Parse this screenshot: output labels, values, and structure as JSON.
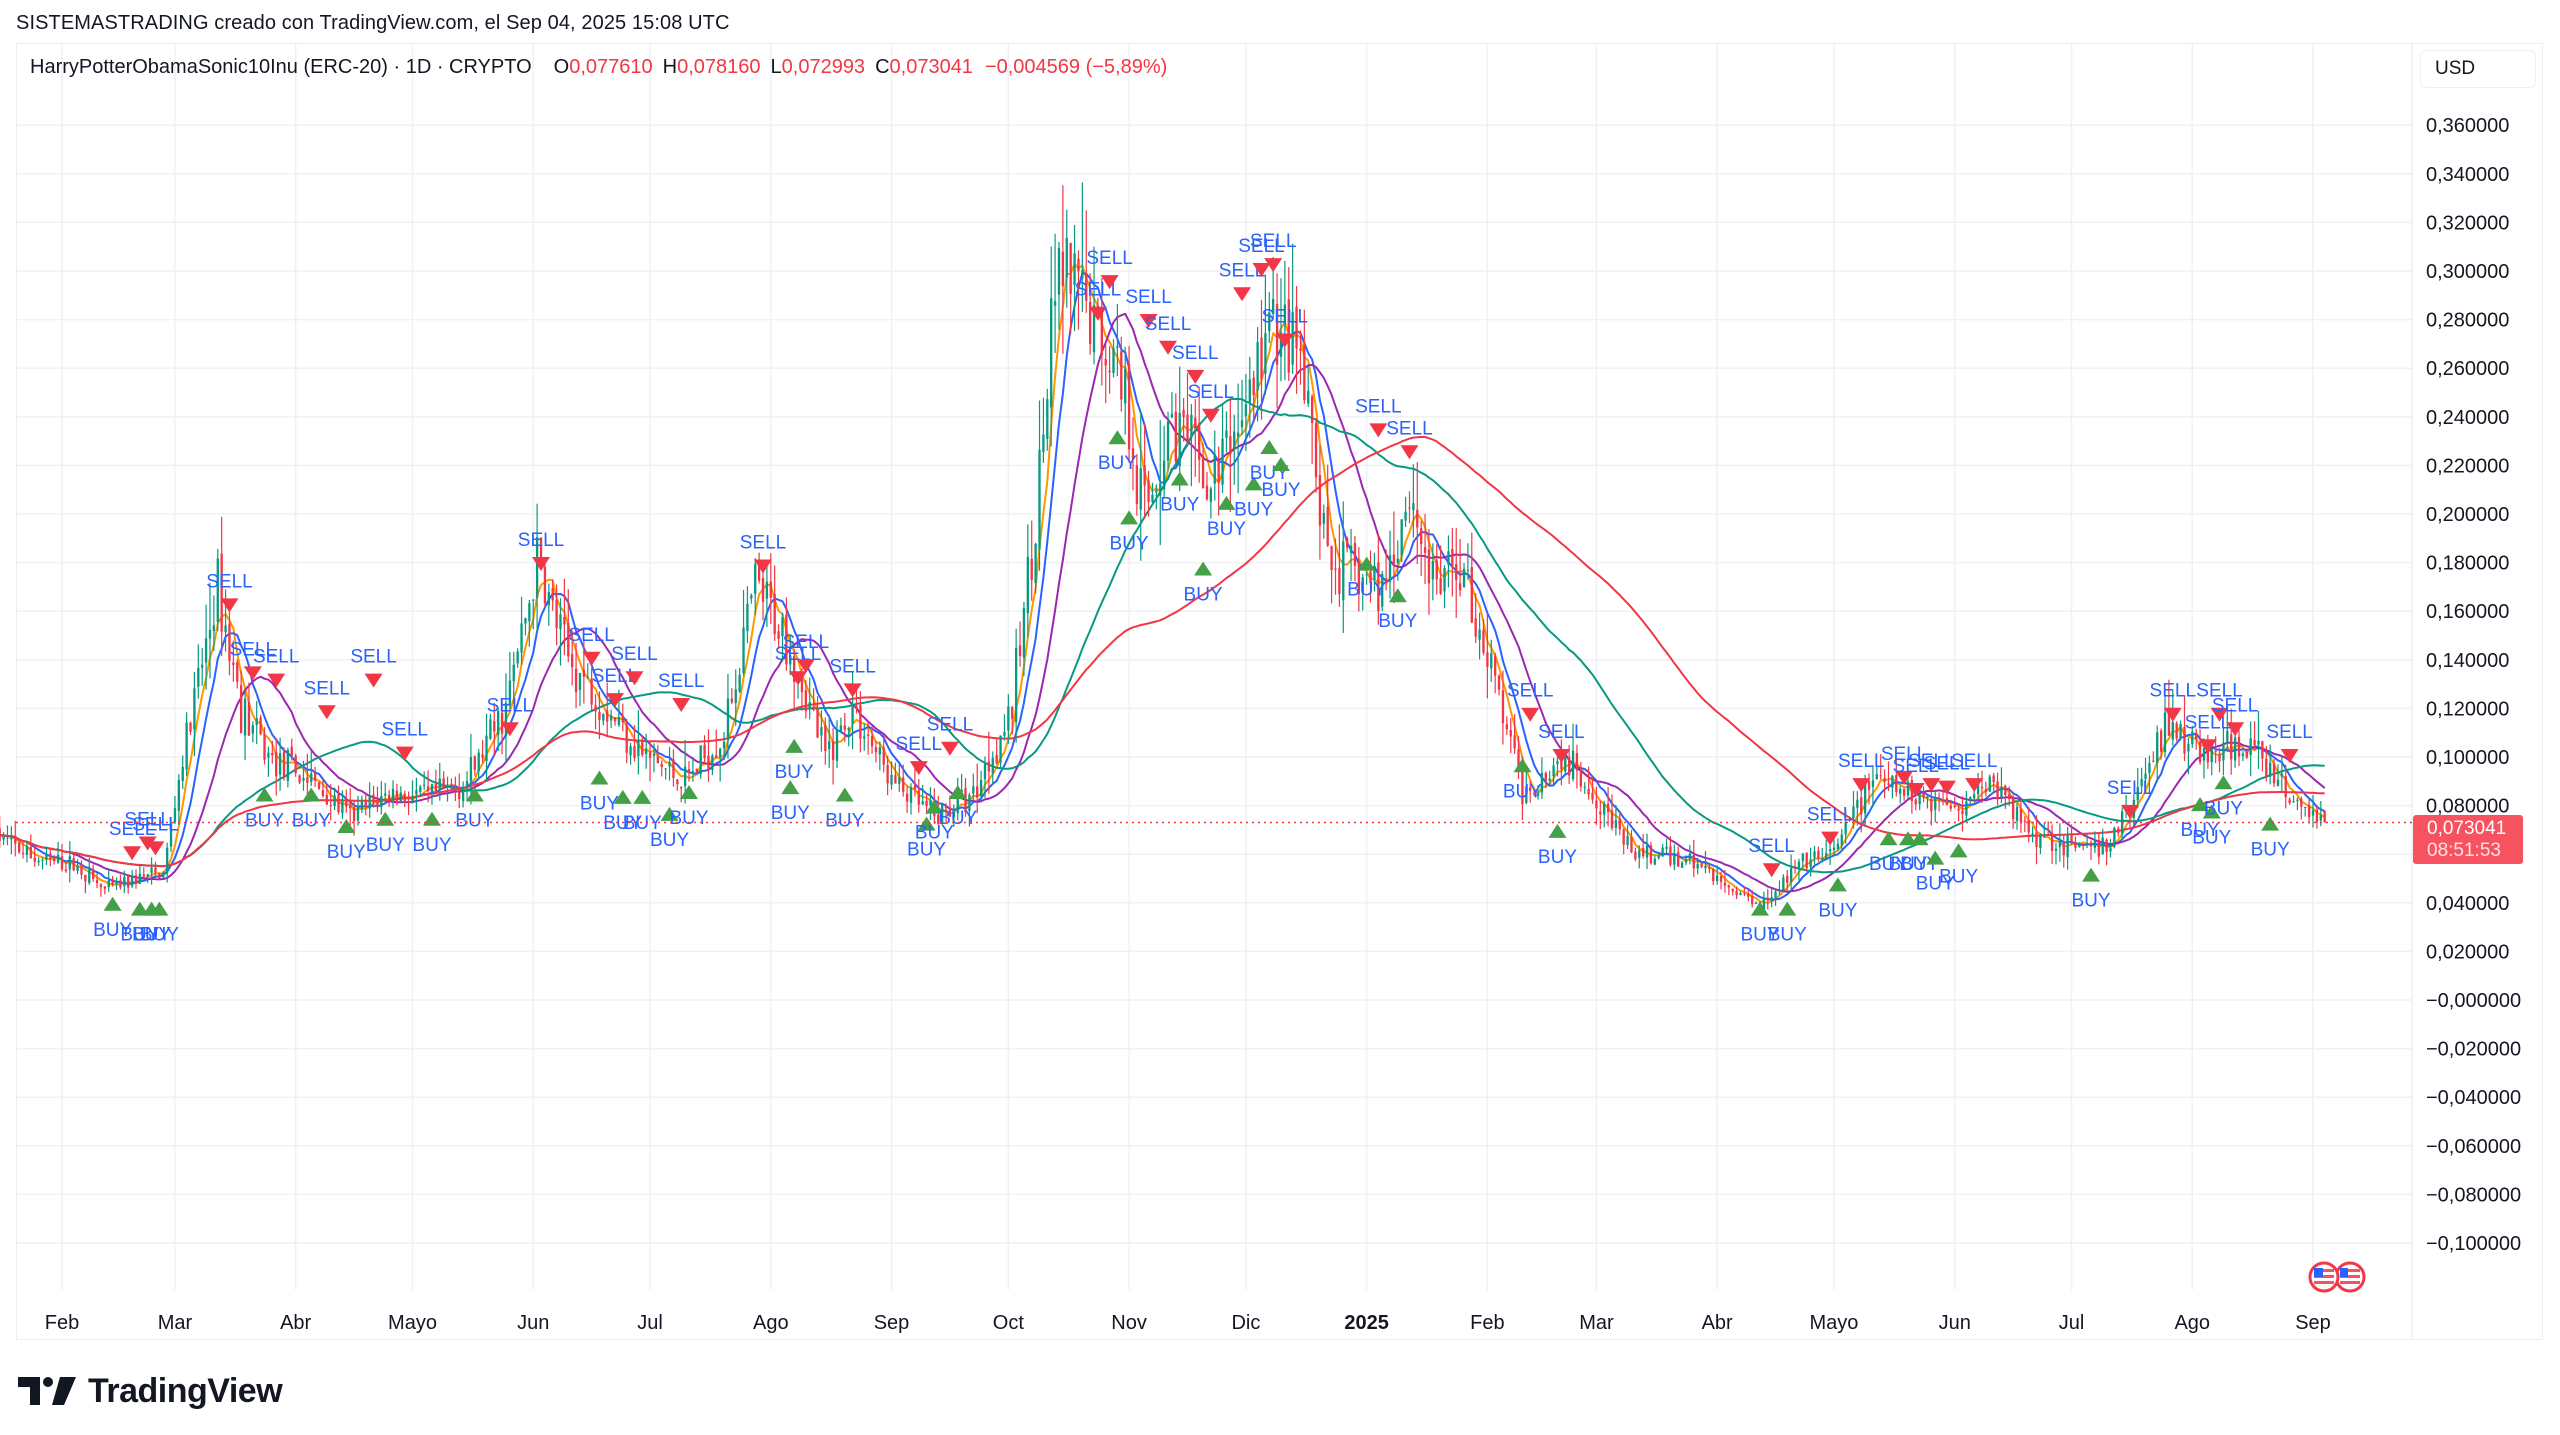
{
  "caption": "SISTEMASTRADING creado con TradingView.com, el Sep 04, 2025 15:08 UTC",
  "legend": {
    "symbol": "HarryPotterObamaSonic10Inu (ERC-20) · 1D · CRYPTO",
    "open_label": "O",
    "open": "0,077610",
    "high_label": "H",
    "high": "0,078160",
    "low_label": "L",
    "low": "0,072993",
    "close_label": "C",
    "close": "0,073041",
    "change": "−0,004569 (−5,89%)"
  },
  "currency": "USD",
  "last_price": {
    "value": "0,073041",
    "countdown": "08:51:53"
  },
  "brand": "TradingView",
  "colors": {
    "up": "#089981",
    "down": "#f23645",
    "ma_fast": "#ff9800",
    "ma_2": "#2962ff",
    "ma_3": "#9c27b0",
    "ma_4": "#089981",
    "ma_slow": "#f23645",
    "signal_text": "#2962ff",
    "buy_marker": "#43a047",
    "sell_marker": "#f23645",
    "price_tag": "#f7525f",
    "grid": "#f0f1f4"
  },
  "chart_data": {
    "type": "candlestick",
    "title": "HarryPotterObamaSonic10Inu (ERC-20) · 1D · CRYPTO",
    "xlabel": "",
    "ylabel": "USD",
    "ylim": [
      -0.11,
      0.375
    ],
    "grid": true,
    "y_ticks": [
      "0,360000",
      "0,340000",
      "0,320000",
      "0,300000",
      "0,280000",
      "0,260000",
      "0,240000",
      "0,220000",
      "0,200000",
      "0,180000",
      "0,160000",
      "0,140000",
      "0,120000",
      "0,100000",
      "0,080000",
      "0,060000",
      "0,040000",
      "0,020000",
      "−0,000000",
      "−0,020000",
      "−0,040000",
      "−0,060000",
      "−0,080000",
      "−0,100000"
    ],
    "x_ticks": [
      {
        "label": "Feb",
        "date": "2024-02-01",
        "bold": false
      },
      {
        "label": "Mar",
        "date": "2024-03-01",
        "bold": false
      },
      {
        "label": "Abr",
        "date": "2024-04-01",
        "bold": false
      },
      {
        "label": "Mayo",
        "date": "2024-05-01",
        "bold": false
      },
      {
        "label": "Jun",
        "date": "2024-06-01",
        "bold": false
      },
      {
        "label": "Jul",
        "date": "2024-07-01",
        "bold": false
      },
      {
        "label": "Ago",
        "date": "2024-08-01",
        "bold": false
      },
      {
        "label": "Sep",
        "date": "2024-09-01",
        "bold": false
      },
      {
        "label": "Oct",
        "date": "2024-10-01",
        "bold": false
      },
      {
        "label": "Nov",
        "date": "2024-11-01",
        "bold": false
      },
      {
        "label": "Dic",
        "date": "2024-12-01",
        "bold": false
      },
      {
        "label": "2025",
        "date": "2025-01-01",
        "bold": true
      },
      {
        "label": "Feb",
        "date": "2025-02-01",
        "bold": false
      },
      {
        "label": "Mar",
        "date": "2025-03-01",
        "bold": false
      },
      {
        "label": "Abr",
        "date": "2025-04-01",
        "bold": false
      },
      {
        "label": "Mayo",
        "date": "2025-05-01",
        "bold": false
      },
      {
        "label": "Jun",
        "date": "2025-06-01",
        "bold": false
      },
      {
        "label": "Jul",
        "date": "2025-07-01",
        "bold": false
      },
      {
        "label": "Ago",
        "date": "2025-08-01",
        "bold": false
      },
      {
        "label": "Sep",
        "date": "2025-09-01",
        "bold": false
      }
    ],
    "close_anchors": [
      [
        "2024-01-15",
        0.068
      ],
      [
        "2024-01-25",
        0.058
      ],
      [
        "2024-02-05",
        0.055
      ],
      [
        "2024-02-12",
        0.045
      ],
      [
        "2024-02-20",
        0.05
      ],
      [
        "2024-02-27",
        0.052
      ],
      [
        "2024-03-03",
        0.1
      ],
      [
        "2024-03-07",
        0.13
      ],
      [
        "2024-03-12",
        0.17
      ],
      [
        "2024-03-18",
        0.12
      ],
      [
        "2024-03-25",
        0.1
      ],
      [
        "2024-04-05",
        0.09
      ],
      [
        "2024-04-15",
        0.075
      ],
      [
        "2024-04-25",
        0.085
      ],
      [
        "2024-05-05",
        0.083
      ],
      [
        "2024-05-15",
        0.09
      ],
      [
        "2024-05-25",
        0.12
      ],
      [
        "2024-06-02",
        0.18
      ],
      [
        "2024-06-10",
        0.14
      ],
      [
        "2024-06-20",
        0.12
      ],
      [
        "2024-06-30",
        0.1
      ],
      [
        "2024-07-10",
        0.09
      ],
      [
        "2024-07-20",
        0.11
      ],
      [
        "2024-07-28",
        0.17
      ],
      [
        "2024-08-05",
        0.15
      ],
      [
        "2024-08-15",
        0.1
      ],
      [
        "2024-08-22",
        0.12
      ],
      [
        "2024-09-01",
        0.09
      ],
      [
        "2024-09-12",
        0.075
      ],
      [
        "2024-09-22",
        0.085
      ],
      [
        "2024-10-02",
        0.12
      ],
      [
        "2024-10-08",
        0.2
      ],
      [
        "2024-10-14",
        0.3
      ],
      [
        "2024-10-22",
        0.28
      ],
      [
        "2024-10-30",
        0.26
      ],
      [
        "2024-11-05",
        0.2
      ],
      [
        "2024-11-12",
        0.24
      ],
      [
        "2024-11-22",
        0.21
      ],
      [
        "2024-12-02",
        0.25
      ],
      [
        "2024-12-08",
        0.28
      ],
      [
        "2024-12-15",
        0.26
      ],
      [
        "2024-12-22",
        0.18
      ],
      [
        "2025-01-05",
        0.17
      ],
      [
        "2025-01-12",
        0.21
      ],
      [
        "2025-01-18",
        0.17
      ],
      [
        "2025-01-25",
        0.18
      ],
      [
        "2025-02-03",
        0.13
      ],
      [
        "2025-02-10",
        0.085
      ],
      [
        "2025-02-20",
        0.1
      ],
      [
        "2025-03-01",
        0.085
      ],
      [
        "2025-03-10",
        0.06
      ],
      [
        "2025-03-25",
        0.058
      ],
      [
        "2025-04-05",
        0.045
      ],
      [
        "2025-04-12",
        0.04
      ],
      [
        "2025-04-22",
        0.055
      ],
      [
        "2025-05-01",
        0.06
      ],
      [
        "2025-05-10",
        0.09
      ],
      [
        "2025-05-20",
        0.085
      ],
      [
        "2025-06-01",
        0.08
      ],
      [
        "2025-06-10",
        0.09
      ],
      [
        "2025-06-20",
        0.07
      ],
      [
        "2025-07-01",
        0.063
      ],
      [
        "2025-07-10",
        0.062
      ],
      [
        "2025-07-18",
        0.085
      ],
      [
        "2025-07-25",
        0.115
      ],
      [
        "2025-08-05",
        0.1
      ],
      [
        "2025-08-15",
        0.105
      ],
      [
        "2025-08-25",
        0.085
      ],
      [
        "2025-09-04",
        0.073
      ]
    ],
    "series": [
      {
        "name": "MA fast",
        "color": "#ff9800",
        "period": 5
      },
      {
        "name": "MA 2",
        "color": "#2962ff",
        "period": 9
      },
      {
        "name": "MA 3",
        "color": "#9c27b0",
        "period": 20
      },
      {
        "name": "MA 4",
        "color": "#089981",
        "period": 50
      },
      {
        "name": "MA slow",
        "color": "#f23645",
        "period": 100
      }
    ],
    "signals": [
      {
        "type": "BUY",
        "date": "2024-02-14",
        "price": 0.04
      },
      {
        "type": "SELL",
        "date": "2024-02-19",
        "price": 0.06
      },
      {
        "type": "BUY",
        "date": "2024-02-21",
        "price": 0.038
      },
      {
        "type": "SELL",
        "date": "2024-02-23",
        "price": 0.064
      },
      {
        "type": "BUY",
        "date": "2024-02-24",
        "price": 0.038
      },
      {
        "type": "SELL",
        "date": "2024-02-25",
        "price": 0.062
      },
      {
        "type": "BUY",
        "date": "2024-02-26",
        "price": 0.038
      },
      {
        "type": "SELL",
        "date": "2024-03-15",
        "price": 0.162
      },
      {
        "type": "SELL",
        "date": "2024-03-21",
        "price": 0.134
      },
      {
        "type": "BUY",
        "date": "2024-03-24",
        "price": 0.085
      },
      {
        "type": "SELL",
        "date": "2024-03-27",
        "price": 0.131
      },
      {
        "type": "BUY",
        "date": "2024-04-05",
        "price": 0.085
      },
      {
        "type": "SELL",
        "date": "2024-04-09",
        "price": 0.118
      },
      {
        "type": "BUY",
        "date": "2024-04-14",
        "price": 0.072
      },
      {
        "type": "SELL",
        "date": "2024-04-21",
        "price": 0.131
      },
      {
        "type": "BUY",
        "date": "2024-04-24",
        "price": 0.075
      },
      {
        "type": "SELL",
        "date": "2024-04-29",
        "price": 0.101
      },
      {
        "type": "BUY",
        "date": "2024-05-06",
        "price": 0.075
      },
      {
        "type": "BUY",
        "date": "2024-05-17",
        "price": 0.085
      },
      {
        "type": "SELL",
        "date": "2024-05-26",
        "price": 0.111
      },
      {
        "type": "SELL",
        "date": "2024-06-03",
        "price": 0.179
      },
      {
        "type": "SELL",
        "date": "2024-06-16",
        "price": 0.14
      },
      {
        "type": "BUY",
        "date": "2024-06-18",
        "price": 0.092
      },
      {
        "type": "SELL",
        "date": "2024-06-22",
        "price": 0.123
      },
      {
        "type": "BUY",
        "date": "2024-06-24",
        "price": 0.084
      },
      {
        "type": "SELL",
        "date": "2024-06-27",
        "price": 0.132
      },
      {
        "type": "BUY",
        "date": "2024-06-29",
        "price": 0.084
      },
      {
        "type": "BUY",
        "date": "2024-07-06",
        "price": 0.077
      },
      {
        "type": "SELL",
        "date": "2024-07-09",
        "price": 0.121
      },
      {
        "type": "BUY",
        "date": "2024-07-11",
        "price": 0.086
      },
      {
        "type": "SELL",
        "date": "2024-07-30",
        "price": 0.178
      },
      {
        "type": "SELL",
        "date": "2024-08-08",
        "price": 0.132
      },
      {
        "type": "BUY",
        "date": "2024-08-07",
        "price": 0.105
      },
      {
        "type": "SELL",
        "date": "2024-08-10",
        "price": 0.137
      },
      {
        "type": "BUY",
        "date": "2024-08-06",
        "price": 0.088
      },
      {
        "type": "SELL",
        "date": "2024-08-22",
        "price": 0.127
      },
      {
        "type": "BUY",
        "date": "2024-08-20",
        "price": 0.085
      },
      {
        "type": "SELL",
        "date": "2024-09-08",
        "price": 0.095
      },
      {
        "type": "BUY",
        "date": "2024-09-10",
        "price": 0.073
      },
      {
        "type": "BUY",
        "date": "2024-09-12",
        "price": 0.08
      },
      {
        "type": "SELL",
        "date": "2024-09-16",
        "price": 0.103
      },
      {
        "type": "BUY",
        "date": "2024-09-18",
        "price": 0.086
      },
      {
        "type": "SELL",
        "date": "2024-10-24",
        "price": 0.282
      },
      {
        "type": "SELL",
        "date": "2024-10-27",
        "price": 0.295
      },
      {
        "type": "BUY",
        "date": "2024-10-29",
        "price": 0.232
      },
      {
        "type": "BUY",
        "date": "2024-11-01",
        "price": 0.199
      },
      {
        "type": "SELL",
        "date": "2024-11-06",
        "price": 0.279
      },
      {
        "type": "SELL",
        "date": "2024-11-11",
        "price": 0.268
      },
      {
        "type": "BUY",
        "date": "2024-11-14",
        "price": 0.215
      },
      {
        "type": "SELL",
        "date": "2024-11-18",
        "price": 0.256
      },
      {
        "type": "BUY",
        "date": "2024-11-20",
        "price": 0.178
      },
      {
        "type": "SELL",
        "date": "2024-11-22",
        "price": 0.24
      },
      {
        "type": "BUY",
        "date": "2024-11-26",
        "price": 0.205
      },
      {
        "type": "SELL",
        "date": "2024-11-30",
        "price": 0.29
      },
      {
        "type": "BUY",
        "date": "2024-12-03",
        "price": 0.213
      },
      {
        "type": "SELL",
        "date": "2024-12-05",
        "price": 0.3
      },
      {
        "type": "BUY",
        "date": "2024-12-07",
        "price": 0.228
      },
      {
        "type": "SELL",
        "date": "2024-12-08",
        "price": 0.302
      },
      {
        "type": "BUY",
        "date": "2024-12-10",
        "price": 0.221
      },
      {
        "type": "SELL",
        "date": "2024-12-11",
        "price": 0.271
      },
      {
        "type": "BUY",
        "date": "2025-01-01",
        "price": 0.18
      },
      {
        "type": "SELL",
        "date": "2025-01-04",
        "price": 0.234
      },
      {
        "type": "BUY",
        "date": "2025-01-09",
        "price": 0.167
      },
      {
        "type": "SELL",
        "date": "2025-01-12",
        "price": 0.225
      },
      {
        "type": "SELL",
        "date": "2025-02-12",
        "price": 0.117
      },
      {
        "type": "BUY",
        "date": "2025-02-10",
        "price": 0.097
      },
      {
        "type": "SELL",
        "date": "2025-02-20",
        "price": 0.1
      },
      {
        "type": "BUY",
        "date": "2025-02-19",
        "price": 0.07
      },
      {
        "type": "BUY",
        "date": "2025-04-12",
        "price": 0.038
      },
      {
        "type": "SELL",
        "date": "2025-04-15",
        "price": 0.053
      },
      {
        "type": "BUY",
        "date": "2025-04-19",
        "price": 0.038
      },
      {
        "type": "SELL",
        "date": "2025-04-30",
        "price": 0.066
      },
      {
        "type": "BUY",
        "date": "2025-05-02",
        "price": 0.048
      },
      {
        "type": "SELL",
        "date": "2025-05-08",
        "price": 0.088
      },
      {
        "type": "BUY",
        "date": "2025-05-15",
        "price": 0.067
      },
      {
        "type": "SELL",
        "date": "2025-05-19",
        "price": 0.091
      },
      {
        "type": "BUY",
        "date": "2025-05-20",
        "price": 0.067
      },
      {
        "type": "SELL",
        "date": "2025-05-22",
        "price": 0.086
      },
      {
        "type": "BUY",
        "date": "2025-05-23",
        "price": 0.067
      },
      {
        "type": "SELL",
        "date": "2025-05-26",
        "price": 0.088
      },
      {
        "type": "BUY",
        "date": "2025-05-27",
        "price": 0.059
      },
      {
        "type": "SELL",
        "date": "2025-05-30",
        "price": 0.087
      },
      {
        "type": "BUY",
        "date": "2025-06-02",
        "price": 0.062
      },
      {
        "type": "SELL",
        "date": "2025-06-06",
        "price": 0.088
      },
      {
        "type": "BUY",
        "date": "2025-07-06",
        "price": 0.052
      },
      {
        "type": "SELL",
        "date": "2025-07-16",
        "price": 0.077
      },
      {
        "type": "SELL",
        "date": "2025-07-27",
        "price": 0.117
      },
      {
        "type": "BUY",
        "date": "2025-08-03",
        "price": 0.081
      },
      {
        "type": "SELL",
        "date": "2025-08-05",
        "price": 0.104
      },
      {
        "type": "BUY",
        "date": "2025-08-06",
        "price": 0.078
      },
      {
        "type": "SELL",
        "date": "2025-08-08",
        "price": 0.117
      },
      {
        "type": "BUY",
        "date": "2025-08-09",
        "price": 0.09
      },
      {
        "type": "SELL",
        "date": "2025-08-12",
        "price": 0.111
      },
      {
        "type": "BUY",
        "date": "2025-08-21",
        "price": 0.073
      },
      {
        "type": "SELL",
        "date": "2025-08-26",
        "price": 0.1
      }
    ]
  }
}
